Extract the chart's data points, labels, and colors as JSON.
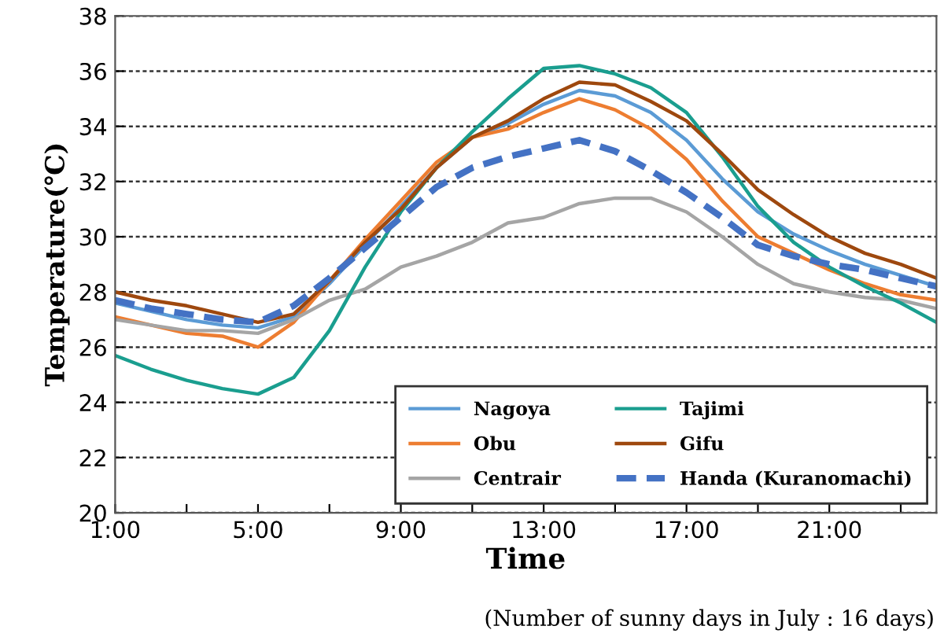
{
  "chart_data": {
    "type": "line",
    "xlabel": "Time",
    "ylabel": "Temperature(℃)",
    "x": [
      1,
      2,
      3,
      4,
      5,
      6,
      7,
      8,
      9,
      10,
      11,
      12,
      13,
      14,
      15,
      16,
      17,
      18,
      19,
      20,
      21,
      22,
      23,
      24
    ],
    "xlim": [
      1,
      24
    ],
    "xticks": [
      {
        "value": 1,
        "label": "1:00"
      },
      {
        "value": 3,
        "label": null
      },
      {
        "value": 5,
        "label": "5:00"
      },
      {
        "value": 7,
        "label": null
      },
      {
        "value": 9,
        "label": "9:00"
      },
      {
        "value": 11,
        "label": null
      },
      {
        "value": 13,
        "label": "13:00"
      },
      {
        "value": 15,
        "label": null
      },
      {
        "value": 17,
        "label": "17:00"
      },
      {
        "value": 19,
        "label": null
      },
      {
        "value": 21,
        "label": "21:00"
      },
      {
        "value": 23,
        "label": null
      }
    ],
    "ylim": [
      20,
      38
    ],
    "yticks": [
      20,
      22,
      24,
      26,
      28,
      30,
      32,
      34,
      36,
      38
    ],
    "grid": "y",
    "legend": "bottom right",
    "series": [
      {
        "name": "Nagoya",
        "color": "#5b9bd5",
        "values": [
          27.6,
          27.3,
          27.0,
          26.8,
          26.7,
          27.1,
          28.3,
          29.7,
          31.1,
          32.5,
          33.6,
          34.1,
          34.8,
          35.3,
          35.1,
          34.5,
          33.5,
          32.1,
          30.9,
          30.1,
          29.5,
          29.0,
          28.6,
          28.2
        ]
      },
      {
        "name": "Obu",
        "color": "#ed7d31",
        "values": [
          27.1,
          26.8,
          26.5,
          26.4,
          26.0,
          26.9,
          28.4,
          29.9,
          31.3,
          32.7,
          33.6,
          33.9,
          34.5,
          35.0,
          34.6,
          33.9,
          32.8,
          31.3,
          30.0,
          29.4,
          28.8,
          28.3,
          27.9,
          27.7
        ]
      },
      {
        "name": "Centrair",
        "color": "#a5a5a5",
        "values": [
          27.0,
          26.8,
          26.6,
          26.6,
          26.5,
          27.0,
          27.7,
          28.1,
          28.9,
          29.3,
          29.8,
          30.5,
          30.7,
          31.2,
          31.4,
          31.4,
          30.9,
          30.0,
          29.0,
          28.3,
          28.0,
          27.8,
          27.7,
          27.4
        ]
      },
      {
        "name": "Tajimi",
        "color": "#1a9e8f",
        "values": [
          25.7,
          25.2,
          24.8,
          24.5,
          24.3,
          24.9,
          26.6,
          28.9,
          30.9,
          32.5,
          33.8,
          35.0,
          36.1,
          36.2,
          35.9,
          35.4,
          34.5,
          32.9,
          31.1,
          29.8,
          28.9,
          28.2,
          27.6,
          26.9
        ]
      },
      {
        "name": "Gifu",
        "color": "#9e480e",
        "values": [
          28.0,
          27.7,
          27.5,
          27.2,
          26.9,
          27.2,
          28.4,
          29.8,
          31.0,
          32.5,
          33.6,
          34.2,
          35.0,
          35.6,
          35.5,
          34.9,
          34.2,
          33.0,
          31.7,
          30.8,
          30.0,
          29.4,
          29.0,
          28.5
        ]
      },
      {
        "name": "Handa (Kuranomachi)",
        "color": "#4472c4",
        "line_style": "dashed",
        "values": [
          27.7,
          27.4,
          27.2,
          27.0,
          26.9,
          27.5,
          28.5,
          29.6,
          30.7,
          31.8,
          32.5,
          32.9,
          33.2,
          33.5,
          33.1,
          32.4,
          31.6,
          30.7,
          29.7,
          29.3,
          29.0,
          28.8,
          28.5,
          28.2
        ]
      }
    ],
    "annotations": [
      "(Number of sunny days in July : 16 days)"
    ]
  }
}
